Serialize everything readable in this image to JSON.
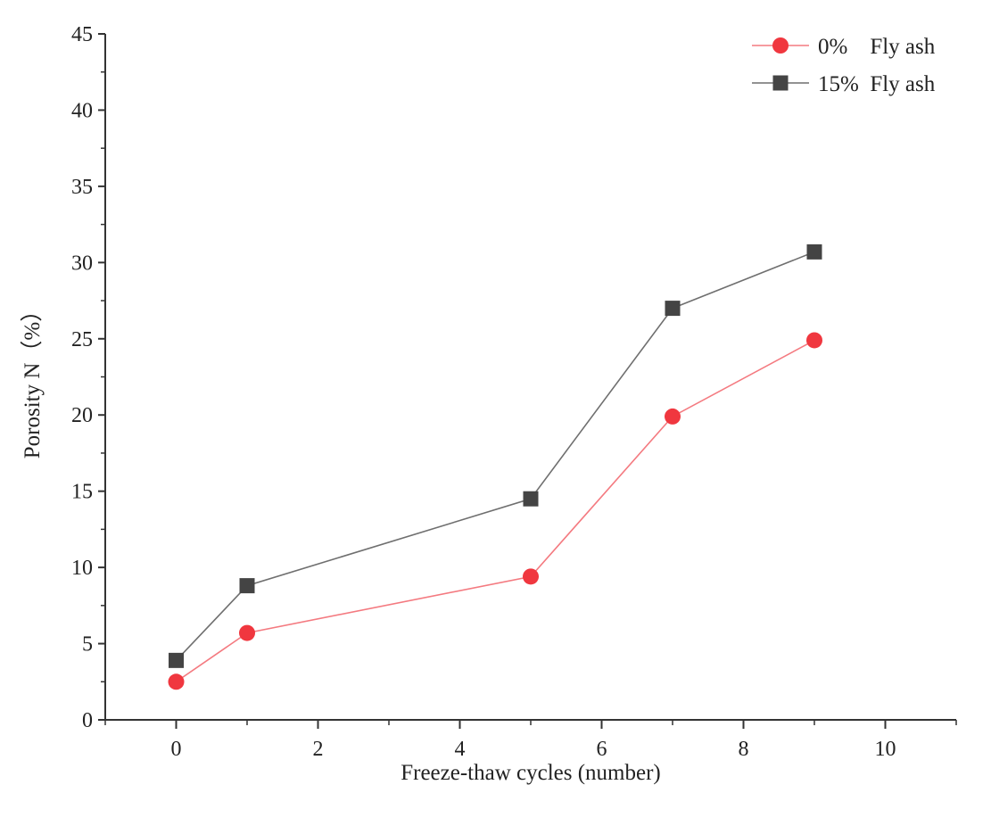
{
  "chart_data": {
    "type": "line",
    "title": "",
    "xlabel": "Freeze-thaw cycles (number)",
    "ylabel": "Porosity N（%）",
    "xlim": [
      -1,
      11
    ],
    "ylim": [
      0,
      45
    ],
    "xticks": [
      0,
      2,
      4,
      6,
      8,
      10
    ],
    "yticks": [
      0,
      5,
      10,
      15,
      20,
      25,
      30,
      35,
      40,
      45
    ],
    "grid": false,
    "legend_position": "top-right",
    "x": [
      0,
      1,
      5,
      7,
      9
    ],
    "series": [
      {
        "name": "0%    Fly ash",
        "marker": "circle",
        "color": "#f0373f",
        "values": [
          2.5,
          5.7,
          9.4,
          19.9,
          24.9
        ]
      },
      {
        "name": "15%  Fly ash",
        "marker": "square",
        "color": "#444444",
        "values": [
          3.9,
          8.8,
          14.5,
          27.0,
          30.7
        ]
      }
    ]
  }
}
